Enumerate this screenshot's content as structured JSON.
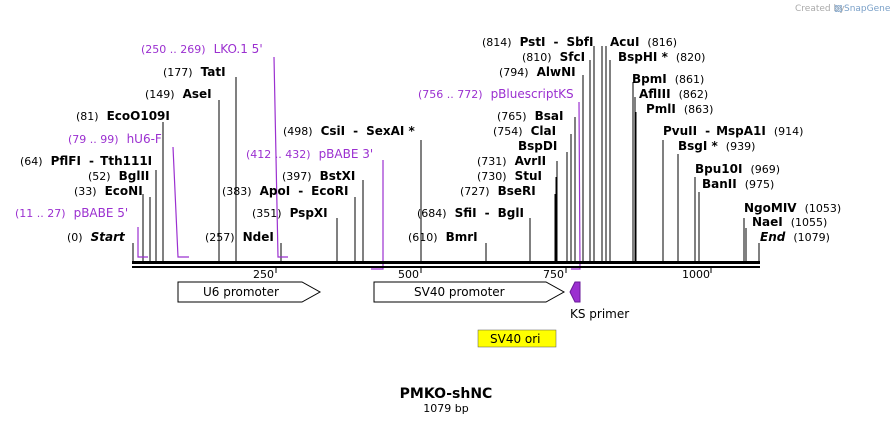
{
  "branding": {
    "prefix": "Created by",
    "name": "SnapGene"
  },
  "map": {
    "title": "PMKO-shNC",
    "length_label": "1079 bp",
    "length": 1079,
    "ticks": [
      "250",
      "500",
      "750",
      "1000"
    ],
    "ticks_values": [
      250,
      500,
      750,
      1000
    ]
  },
  "features": {
    "u6": "U6 promoter",
    "sv40": "SV40 promoter",
    "ori": "SV40 ori",
    "ks": "KS primer"
  },
  "sites": {
    "start": {
      "pos": "(0)",
      "name": "Start"
    },
    "end": {
      "pos": "(1079)",
      "name": "End"
    },
    "pbabe5": {
      "pos": "(11 .. 27)",
      "name": "pBABE 5'"
    },
    "econi": {
      "pos": "(33)",
      "name": "EcoNI"
    },
    "bglii": {
      "pos": "(52)",
      "name": "BglII"
    },
    "pflfi": {
      "pos": "(64)",
      "name": "PflFI",
      "alt": "Tth111I"
    },
    "hu6f": {
      "pos": "(79 .. 99)",
      "name": "hU6-F"
    },
    "eco0109i": {
      "pos": "(81)",
      "name": "EcoO109I"
    },
    "asei": {
      "pos": "(149)",
      "name": "AseI"
    },
    "tati": {
      "pos": "(177)",
      "name": "TatI"
    },
    "lko1": {
      "pos": "(250 .. 269)",
      "name": "LKO.1 5'"
    },
    "ndei": {
      "pos": "(257)",
      "name": "NdeI"
    },
    "pspxi": {
      "pos": "(351)",
      "name": "PspXI"
    },
    "apoi": {
      "pos": "(383)",
      "name": "ApoI",
      "alt": "EcoRI"
    },
    "bstxi": {
      "pos": "(397)",
      "name": "BstXI"
    },
    "pbabe3": {
      "pos": "(412 .. 432)",
      "name": "pBABE 3'"
    },
    "csii": {
      "pos": "(498)",
      "name": "CsiI",
      "alt": "SexAI *"
    },
    "bmri": {
      "pos": "(610)",
      "name": "BmrI"
    },
    "sfii": {
      "pos": "(684)",
      "name": "SfiI",
      "alt": "BglI"
    },
    "bseri": {
      "pos": "(727)",
      "name": "BseRI"
    },
    "stui": {
      "pos": "(730)",
      "name": "StuI"
    },
    "avrii": {
      "pos": "(731)",
      "name": "AvrII"
    },
    "bspdi": {
      "name": "BspDI"
    },
    "clai": {
      "pos": "(754)",
      "name": "ClaI"
    },
    "bsai": {
      "pos": "(765)",
      "name": "BsaI"
    },
    "pbluescriptks": {
      "pos": "(756 .. 772)",
      "name": "pBluescriptKS"
    },
    "alwni": {
      "pos": "(794)",
      "name": "AlwNI"
    },
    "sfci": {
      "pos": "(810)",
      "name": "SfcI"
    },
    "psti": {
      "pos": "(814)",
      "name": "PstI",
      "alt": "SbfI"
    },
    "bsphi": {
      "name": "BspHI *",
      "pos": "(820)"
    },
    "acui": {
      "name": "AcuI",
      "pos": "(816)"
    },
    "bpmi": {
      "name": "BpmI",
      "pos": "(861)"
    },
    "afliii": {
      "name": "AflIII",
      "pos": "(862)"
    },
    "pmli": {
      "name": "PmlI",
      "pos": "(863)"
    },
    "pvuii": {
      "name": "PvuII",
      "alt": "MspA1I",
      "pos": "(914)"
    },
    "bsgi": {
      "name": "BsgI *",
      "pos": "(939)"
    },
    "bpu10i": {
      "name": "Bpu10I",
      "pos": "(969)"
    },
    "banii": {
      "name": "BanII",
      "pos": "(975)"
    },
    "ngomiv": {
      "name": "NgoMIV",
      "pos": "(1053)"
    },
    "naei": {
      "name": "NaeI",
      "pos": "(1055)"
    }
  },
  "colors": {
    "primer": "#9b30d0",
    "ori": "#ffff00",
    "ks_arrow": "#9b30d0"
  }
}
